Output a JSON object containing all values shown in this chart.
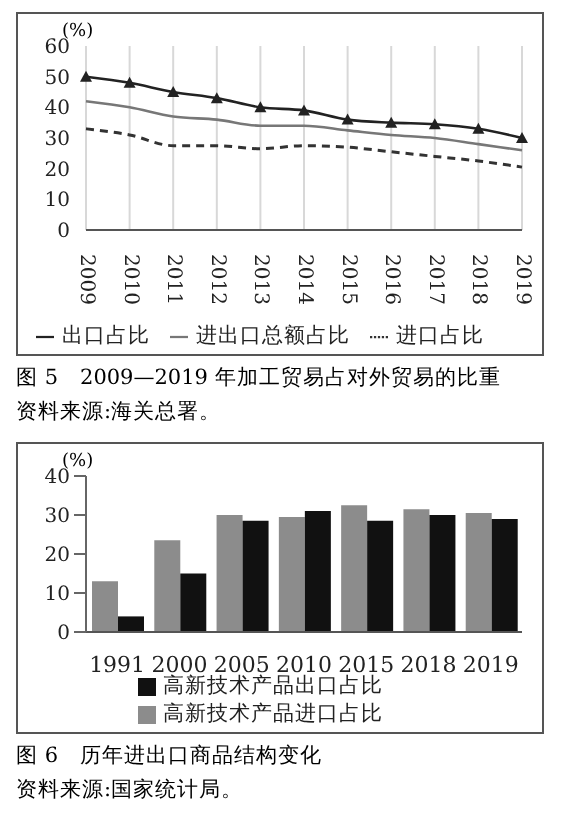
{
  "chart_data": [
    {
      "type": "line",
      "ylabel": "(%)",
      "categories": [
        "2009",
        "2010",
        "2011",
        "2012",
        "2013",
        "2014",
        "2015",
        "2016",
        "2017",
        "2018",
        "2019"
      ],
      "series": [
        {
          "name": "出口占比",
          "color": "#222222",
          "marker": "triangle",
          "line_style": "solid",
          "values": [
            50,
            48,
            45,
            43,
            40,
            39,
            36,
            35,
            34.5,
            33,
            30
          ]
        },
        {
          "name": "进口占比",
          "color": "#333333",
          "marker": "none",
          "line_style": "dashed",
          "values": [
            33,
            31,
            27.5,
            27.5,
            26.5,
            27.5,
            27,
            25.5,
            24,
            22.5,
            20.5
          ]
        },
        {
          "name": "进出口总额占比",
          "color": "#777777",
          "marker": "none",
          "line_style": "solid",
          "values": [
            42,
            40,
            37,
            36,
            34,
            34,
            32.5,
            31,
            30,
            28,
            26
          ]
        }
      ],
      "ylim": [
        0,
        60
      ],
      "yticks": [
        0,
        10,
        20,
        30,
        40,
        50,
        60
      ],
      "grid": "x",
      "legend": "bottom",
      "annotations": [
        "图 5　2009—2019 年加工贸易占对外贸易的比重",
        "资料来源:海关总署。"
      ]
    },
    {
      "type": "bar",
      "ylabel": "(%)",
      "categories": [
        "1991",
        "2000",
        "2005",
        "2010",
        "2015",
        "2018",
        "2019"
      ],
      "series": [
        {
          "name": "高新技术产品进口占比",
          "color": "#8c8c8c",
          "values": [
            13,
            23.5,
            30,
            29.5,
            32.5,
            31.5,
            30.5
          ]
        },
        {
          "name": "高新技术产品出口占比",
          "color": "#111111",
          "values": [
            4,
            15,
            28.5,
            31,
            28.5,
            30,
            29
          ]
        }
      ],
      "ylim": [
        0,
        40
      ],
      "yticks": [
        0,
        10,
        20,
        30,
        40
      ],
      "grid": false,
      "legend": "bottom",
      "annotations": [
        "图 6　历年进出口商品结构变化",
        "资料来源:国家统计局。"
      ]
    }
  ]
}
